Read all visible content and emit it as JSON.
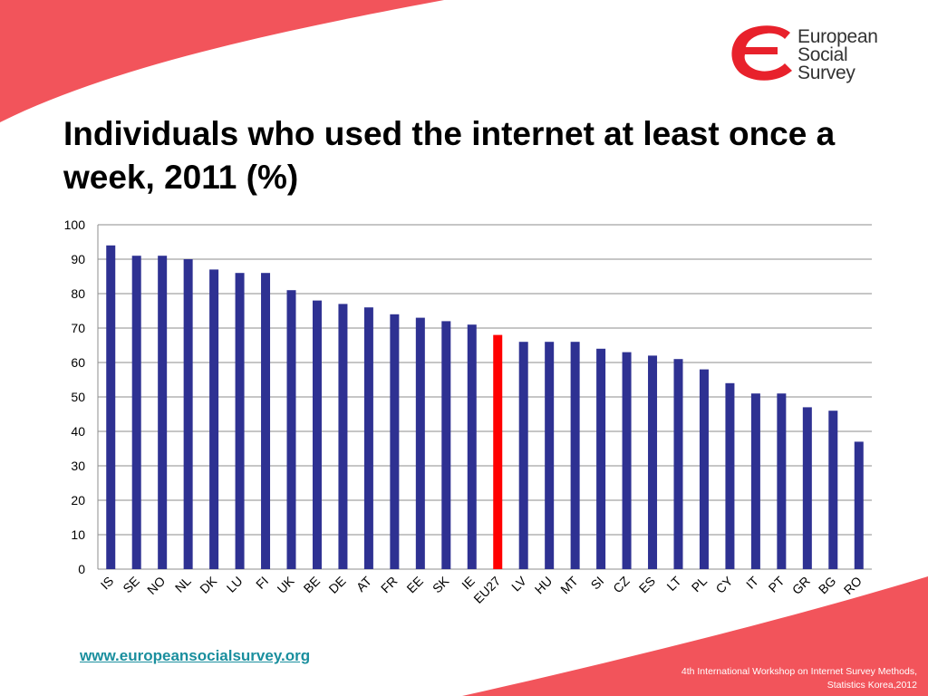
{
  "colors": {
    "bar": "#2e3192",
    "highlight_bar": "#ff0000",
    "accent": "#f2545b",
    "link": "#1a8f9e",
    "grid": "#8c8c8c"
  },
  "logo": {
    "icon": "european-social-survey-logo-icon",
    "line1": "European",
    "line2": "Social",
    "line3": "Survey"
  },
  "title": "Individuals who used the internet at least once a week, 2011 (%)",
  "footer": {
    "link": "www.europeansocialsurvey.org",
    "note_line1": "4th International Workshop on Internet Survey Methods,",
    "note_line2": "Statistics Korea,2012"
  },
  "chart_data": {
    "type": "bar",
    "categories": [
      "IS",
      "SE",
      "NO",
      "NL",
      "DK",
      "LU",
      "FI",
      "UK",
      "BE",
      "DE",
      "AT",
      "FR",
      "EE",
      "SK",
      "IE",
      "EU27",
      "LV",
      "HU",
      "MT",
      "SI",
      "CZ",
      "ES",
      "LT",
      "PL",
      "CY",
      "IT",
      "PT",
      "GR",
      "BG",
      "RO"
    ],
    "values": [
      94,
      91,
      91,
      90,
      87,
      86,
      86,
      81,
      78,
      77,
      76,
      74,
      73,
      72,
      71,
      68,
      66,
      66,
      66,
      64,
      63,
      62,
      61,
      58,
      54,
      51,
      51,
      47,
      46,
      37
    ],
    "highlight": "EU27",
    "ylim": [
      0,
      100
    ],
    "yticks": [
      "0",
      "10",
      "20",
      "30",
      "40",
      "50",
      "60",
      "70",
      "80",
      "90",
      "100"
    ],
    "grid": true,
    "legend": "none"
  }
}
